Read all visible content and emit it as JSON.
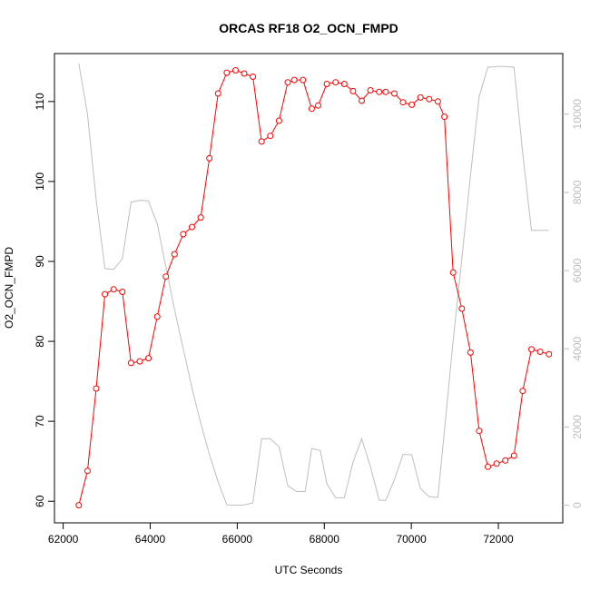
{
  "chart_data": {
    "type": "line",
    "title": "ORCAS RF18 O2_OCN_FMPD",
    "xlabel": "UTC Seconds",
    "ylabel": "O2_OCN_FMPD",
    "xlim": [
      61800,
      73480
    ],
    "ylim": [
      57.3,
      116.0
    ],
    "y2lim": [
      -450,
      11550
    ],
    "x_ticks": [
      62000,
      64000,
      66000,
      68000,
      70000,
      72000
    ],
    "x_tick_labels": [
      "62000",
      "64000",
      "66000",
      "68000",
      "70000",
      "72000"
    ],
    "y_ticks": [
      60,
      70,
      80,
      90,
      100,
      110
    ],
    "y_tick_labels": [
      "60",
      "70",
      "80",
      "90",
      "100",
      "110"
    ],
    "y2_ticks": [
      0,
      2000,
      4000,
      6000,
      8000,
      10000
    ],
    "y2_tick_labels": [
      "0",
      "2000",
      "4000",
      "6000",
      "8000",
      "10000"
    ],
    "grid": false,
    "legend": "none",
    "colors": {
      "primary_series": "#ff0000",
      "secondary_series": "#bebebe",
      "axes": "#000000",
      "right_axis": "#bebebe"
    },
    "series": [
      {
        "axis": "left",
        "style": "line+open-circles",
        "points": [
          [
            62360,
            59.5
          ],
          [
            62560,
            63.8
          ],
          [
            62760,
            74.1
          ],
          [
            62960,
            85.9
          ],
          [
            63160,
            86.5
          ],
          [
            63360,
            86.2
          ],
          [
            63560,
            77.3
          ],
          [
            63760,
            77.5
          ],
          [
            63960,
            77.9
          ],
          [
            64160,
            83.1
          ],
          [
            64360,
            88.1
          ],
          [
            64560,
            90.9
          ],
          [
            64760,
            93.4
          ],
          [
            64960,
            94.3
          ],
          [
            65160,
            95.5
          ],
          [
            65360,
            102.9
          ],
          [
            65560,
            111.0
          ],
          [
            65760,
            113.6
          ],
          [
            65960,
            113.9
          ],
          [
            66160,
            113.5
          ],
          [
            66360,
            113.1
          ],
          [
            66560,
            105.0
          ],
          [
            66760,
            105.7
          ],
          [
            66960,
            107.6
          ],
          [
            67160,
            112.4
          ],
          [
            67310,
            112.7
          ],
          [
            67510,
            112.7
          ],
          [
            67710,
            109.1
          ],
          [
            67860,
            109.5
          ],
          [
            68060,
            112.2
          ],
          [
            68260,
            112.4
          ],
          [
            68460,
            112.2
          ],
          [
            68660,
            111.3
          ],
          [
            68860,
            110.1
          ],
          [
            69060,
            111.4
          ],
          [
            69260,
            111.2
          ],
          [
            69410,
            111.2
          ],
          [
            69610,
            111.0
          ],
          [
            69810,
            109.9
          ],
          [
            70010,
            109.6
          ],
          [
            70210,
            110.5
          ],
          [
            70410,
            110.3
          ],
          [
            70610,
            110.0
          ],
          [
            70760,
            108.1
          ],
          [
            70960,
            88.6
          ],
          [
            71160,
            84.1
          ],
          [
            71360,
            78.6
          ],
          [
            71560,
            68.8
          ],
          [
            71760,
            64.3
          ],
          [
            71960,
            64.7
          ],
          [
            72160,
            65.1
          ],
          [
            72360,
            65.7
          ],
          [
            72560,
            73.8
          ],
          [
            72760,
            79.0
          ],
          [
            72960,
            78.7
          ],
          [
            73160,
            78.4
          ]
        ]
      },
      {
        "axis": "right",
        "style": "line",
        "points": [
          [
            62360,
            11300
          ],
          [
            62560,
            10000
          ],
          [
            62760,
            7800
          ],
          [
            62960,
            6050
          ],
          [
            63160,
            6030
          ],
          [
            63360,
            6300
          ],
          [
            63560,
            7750
          ],
          [
            63760,
            7800
          ],
          [
            63960,
            7780
          ],
          [
            64160,
            7200
          ],
          [
            64360,
            6100
          ],
          [
            64560,
            5000
          ],
          [
            64760,
            4000
          ],
          [
            64960,
            3000
          ],
          [
            65160,
            2100
          ],
          [
            65360,
            1300
          ],
          [
            65560,
            600
          ],
          [
            65760,
            10
          ],
          [
            65960,
            0
          ],
          [
            66160,
            10
          ],
          [
            66360,
            60
          ],
          [
            66560,
            1700
          ],
          [
            66760,
            1700
          ],
          [
            66960,
            1500
          ],
          [
            67160,
            500
          ],
          [
            67360,
            350
          ],
          [
            67560,
            350
          ],
          [
            67710,
            1450
          ],
          [
            67910,
            1400
          ],
          [
            68060,
            550
          ],
          [
            68260,
            190
          ],
          [
            68460,
            190
          ],
          [
            68660,
            1100
          ],
          [
            68860,
            1700
          ],
          [
            69060,
            990
          ],
          [
            69260,
            130
          ],
          [
            69410,
            120
          ],
          [
            69610,
            650
          ],
          [
            69810,
            1300
          ],
          [
            70010,
            1290
          ],
          [
            70210,
            430
          ],
          [
            70410,
            220
          ],
          [
            70610,
            200
          ],
          [
            70760,
            1900
          ],
          [
            70960,
            4200
          ],
          [
            71160,
            6300
          ],
          [
            71360,
            8450
          ],
          [
            71560,
            10450
          ],
          [
            71760,
            11200
          ],
          [
            71960,
            11220
          ],
          [
            72160,
            11220
          ],
          [
            72360,
            11200
          ],
          [
            72560,
            9000
          ],
          [
            72760,
            7030
          ],
          [
            72960,
            7030
          ],
          [
            73160,
            7030
          ]
        ]
      }
    ]
  }
}
